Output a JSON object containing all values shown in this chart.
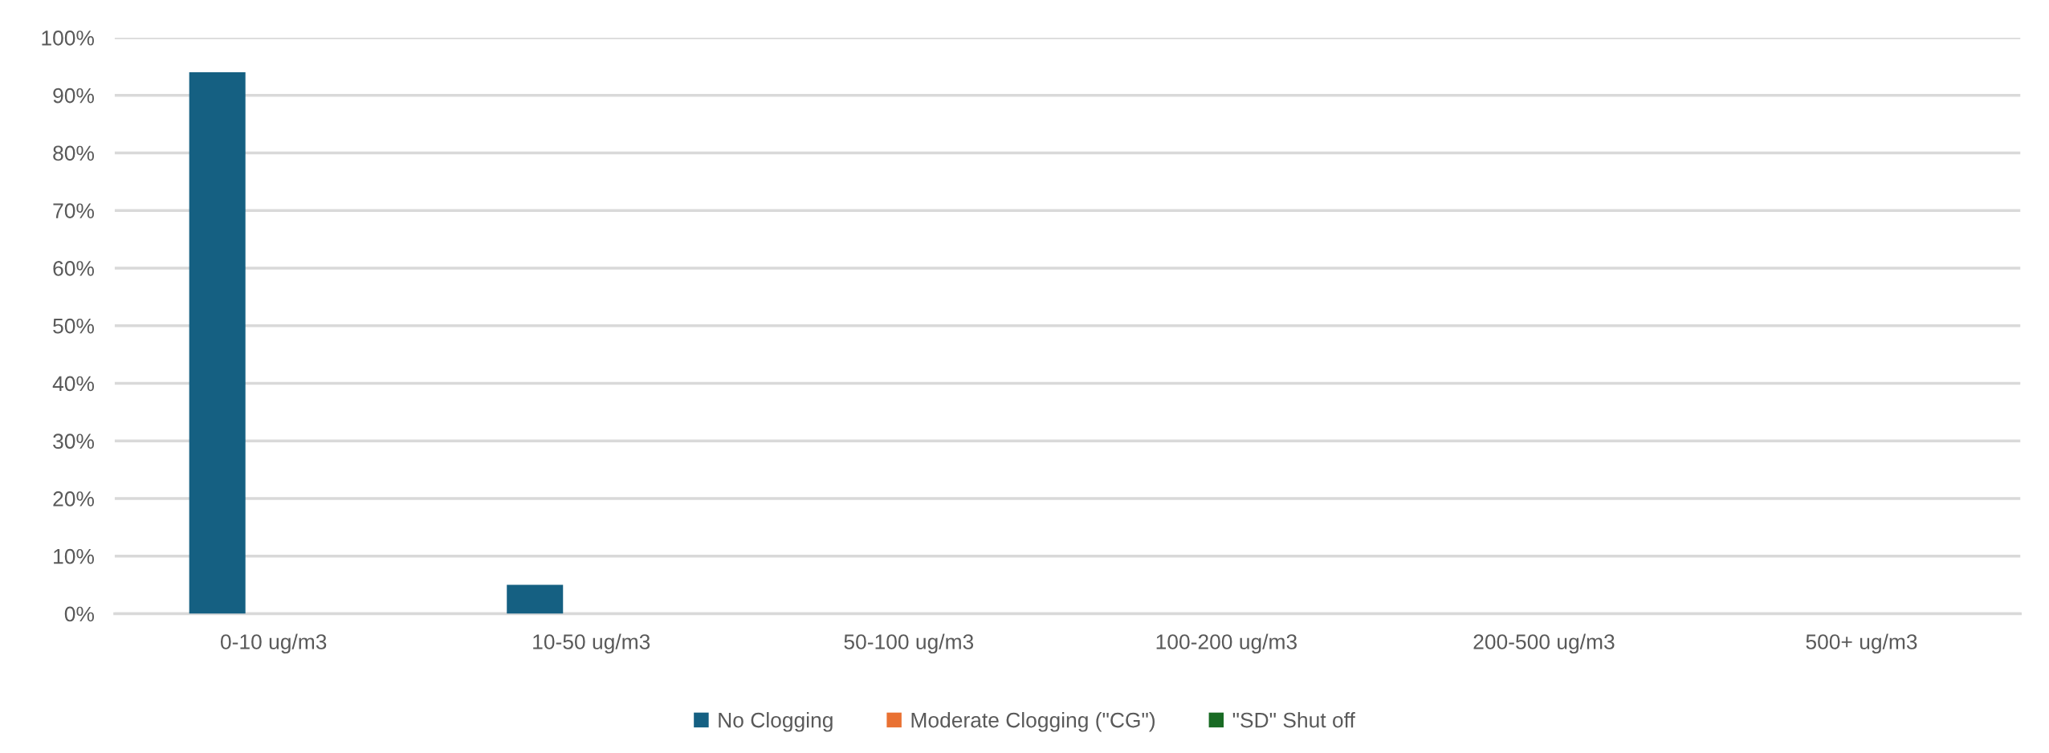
{
  "chart_data": {
    "type": "bar",
    "categories": [
      "0-10 ug/m3",
      "10-50 ug/m3",
      "50-100 ug/m3",
      "100-200 ug/m3",
      "200-500 ug/m3",
      "500+ ug/m3"
    ],
    "series": [
      {
        "name": "No Clogging",
        "color": "#156082",
        "values": [
          94,
          5,
          0,
          0,
          0,
          0
        ]
      },
      {
        "name": "Moderate Clogging (\"CG\")",
        "color": "#e97132",
        "values": [
          0,
          0,
          0,
          0,
          0,
          0
        ]
      },
      {
        "name": "\"SD\" Shut off",
        "color": "#196b24",
        "values": [
          0,
          0,
          0,
          0,
          0,
          0
        ]
      }
    ],
    "ylim": [
      0,
      100
    ],
    "yticks": [
      {
        "value": 0,
        "label": "0%"
      },
      {
        "value": 10,
        "label": "10%"
      },
      {
        "value": 20,
        "label": "20%"
      },
      {
        "value": 30,
        "label": "30%"
      },
      {
        "value": 40,
        "label": "40%"
      },
      {
        "value": 50,
        "label": "50%"
      },
      {
        "value": 60,
        "label": "60%"
      },
      {
        "value": 70,
        "label": "70%"
      },
      {
        "value": 80,
        "label": "80%"
      },
      {
        "value": 90,
        "label": "90%"
      },
      {
        "value": 100,
        "label": "100%"
      }
    ],
    "grid": "y",
    "legend": "bottom"
  }
}
